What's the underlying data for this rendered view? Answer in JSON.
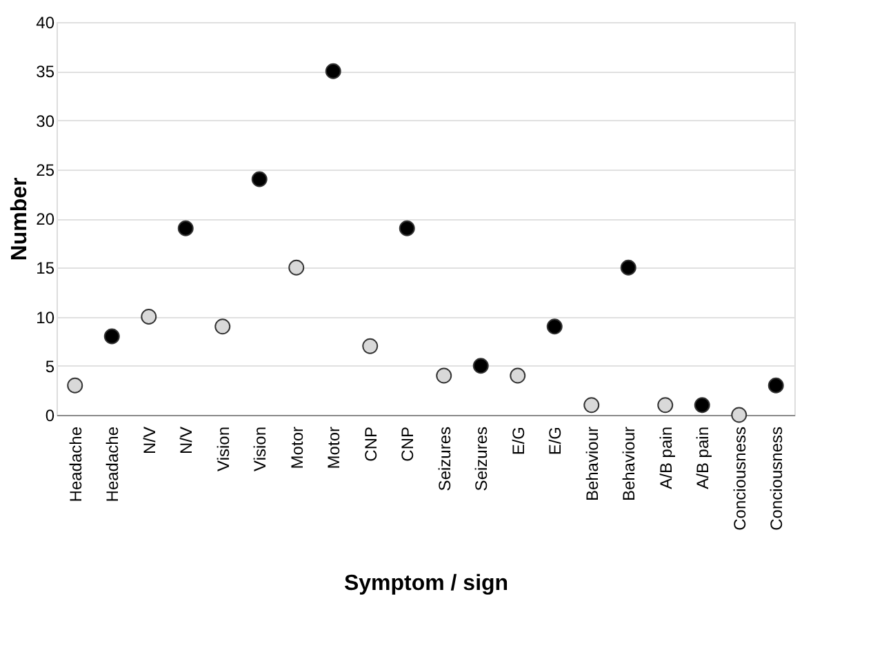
{
  "chart_data": {
    "type": "scatter",
    "xlabel": "Symptom / sign",
    "ylabel": "Number",
    "categories": [
      "Headache",
      "Headache",
      "N/V",
      "N/V",
      "Vision",
      "Vision",
      "Motor",
      "Motor",
      "CNP",
      "CNP",
      "Seizures",
      "Seizures",
      "E/G",
      "E/G",
      "Behaviour",
      "Behaviour",
      "A/B pain",
      "A/B pain",
      "Conciousness",
      "Conciousness"
    ],
    "series": [
      {
        "color": "#d9d9d9",
        "values": [
          3,
          null,
          10,
          null,
          9,
          null,
          15,
          null,
          7,
          null,
          4,
          null,
          4,
          null,
          1,
          null,
          1,
          null,
          0,
          null
        ]
      },
      {
        "color": "#000000",
        "values": [
          null,
          8,
          null,
          19,
          null,
          24,
          null,
          35,
          null,
          19,
          null,
          5,
          null,
          9,
          null,
          15,
          null,
          1,
          null,
          3
        ]
      }
    ],
    "ylim": [
      0,
      40
    ],
    "yticks": [
      0,
      5,
      10,
      15,
      20,
      25,
      30,
      35,
      40
    ],
    "grid": "y",
    "marker": "circle"
  }
}
